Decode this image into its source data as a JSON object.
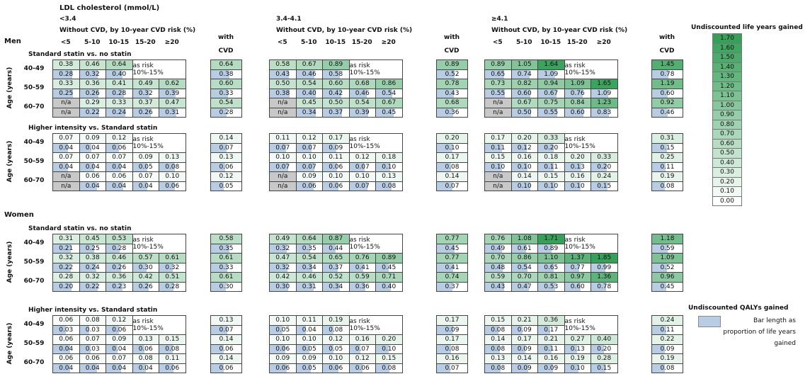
{
  "header": {
    "title": "LDL cholesterol (mmol/L)",
    "groups": [
      {
        "label": "<3.4",
        "subtitle": "Without CVD, by 10-year CVD risk (%)"
      },
      {
        "label": "3.4-4.1",
        "subtitle": "Without CVD, by 10-year CVD risk (%)"
      },
      {
        "label": "≥4.1",
        "subtitle": "Without CVD, by 10-year CVD risk (%)"
      }
    ],
    "risk_columns": [
      "<5",
      "5-10",
      "10-15",
      "15-20",
      "≥20"
    ],
    "cvd_column": "with CVD"
  },
  "age_axis_label": "Age (years)",
  "merged_label": "as risk 10%-15%",
  "sexes": [
    {
      "label": "Men",
      "comparisons": [
        {
          "label": "Standard statin vs. no statin",
          "ages": [
            {
              "label": "40-49",
              "life_years": [
                [
                  "0.38",
                  "0.46",
                  "0.64",
                  "0.64"
                ],
                [
                  "0.58",
                  "0.67",
                  "0.89",
                  "0.89"
                ],
                [
                  "0.89",
                  "1.05",
                  "1.64",
                  "1.45"
                ]
              ],
              "qalys": [
                [
                  "0.28",
                  "0.32",
                  "0.40",
                  "0.38"
                ],
                [
                  "0.43",
                  "0.46",
                  "0.58",
                  "0.52"
                ],
                [
                  "0.65",
                  "0.74",
                  "1.09",
                  "0.78"
                ]
              ]
            },
            {
              "label": "50-59",
              "life_years": [
                [
                  "0.33",
                  "0.36",
                  "0.41",
                  "0.49",
                  "0.62",
                  "0.60"
                ],
                [
                  "0.50",
                  "0.54",
                  "0.60",
                  "0.68",
                  "0.86",
                  "0.78"
                ],
                [
                  "0.73",
                  "0.82",
                  "0.94",
                  "1.09",
                  "1.65",
                  "1.19"
                ]
              ],
              "qalys": [
                [
                  "0.25",
                  "0.26",
                  "0.28",
                  "0.32",
                  "0.39",
                  "0.33"
                ],
                [
                  "0.38",
                  "0.40",
                  "0.42",
                  "0.46",
                  "0.54",
                  "0.43"
                ],
                [
                  "0.55",
                  "0.60",
                  "0.67",
                  "0.76",
                  "1.09",
                  "0.60"
                ]
              ]
            },
            {
              "label": "60-70",
              "life_years": [
                [
                  "n/a",
                  "0.29",
                  "0.33",
                  "0.37",
                  "0.47",
                  "0.54"
                ],
                [
                  "n/a",
                  "0.45",
                  "0.50",
                  "0.54",
                  "0.67",
                  "0.68"
                ],
                [
                  "n/a",
                  "0.67",
                  "0.75",
                  "0.84",
                  "1.23",
                  "0.92"
                ]
              ],
              "qalys": [
                [
                  "n/a",
                  "0.22",
                  "0.24",
                  "0.26",
                  "0.31",
                  "0.28"
                ],
                [
                  "n/a",
                  "0.34",
                  "0.37",
                  "0.39",
                  "0.45",
                  "0.36"
                ],
                [
                  "n/a",
                  "0.50",
                  "0.55",
                  "0.60",
                  "0.83",
                  "0.46"
                ]
              ]
            }
          ]
        },
        {
          "label": "Higher intensity vs. Standard statin",
          "ages": [
            {
              "label": "40-49",
              "life_years": [
                [
                  "0.07",
                  "0.09",
                  "0.12",
                  "0.14"
                ],
                [
                  "0.11",
                  "0.12",
                  "0.17",
                  "0.20"
                ],
                [
                  "0.17",
                  "0.20",
                  "0.33",
                  "0.31"
                ]
              ],
              "qalys": [
                [
                  "0.04",
                  "0.04",
                  "0.06",
                  "0.07"
                ],
                [
                  "0.07",
                  "0.07",
                  "0.09",
                  "0.10"
                ],
                [
                  "0.11",
                  "0.12",
                  "0.20",
                  "0.15"
                ]
              ]
            },
            {
              "label": "50-59",
              "life_years": [
                [
                  "0.07",
                  "0.07",
                  "0.07",
                  "0.09",
                  "0.13",
                  "0.13"
                ],
                [
                  "0.10",
                  "0.10",
                  "0.11",
                  "0.12",
                  "0.18",
                  "0.17"
                ],
                [
                  "0.15",
                  "0.16",
                  "0.18",
                  "0.20",
                  "0.33",
                  "0.25"
                ]
              ],
              "qalys": [
                [
                  "0.04",
                  "0.04",
                  "0.04",
                  "0.05",
                  "0.08",
                  "0.06"
                ],
                [
                  "0.07",
                  "0.07",
                  "0.06",
                  "0.07",
                  "0.10",
                  "0.08"
                ],
                [
                  "0.10",
                  "0.10",
                  "0.11",
                  "0.13",
                  "0.20",
                  "0.11"
                ]
              ]
            },
            {
              "label": "60-70",
              "life_years": [
                [
                  "n/a",
                  "0.06",
                  "0.06",
                  "0.07",
                  "0.10",
                  "0.12"
                ],
                [
                  "n/a",
                  "0.09",
                  "0.10",
                  "0.10",
                  "0.13",
                  "0.14"
                ],
                [
                  "n/a",
                  "0.14",
                  "0.15",
                  "0.16",
                  "0.24",
                  "0.19"
                ]
              ],
              "qalys": [
                [
                  "n/a",
                  "0.04",
                  "0.04",
                  "0.04",
                  "0.06",
                  "0.05"
                ],
                [
                  "n/a",
                  "0.06",
                  "0.06",
                  "0.07",
                  "0.08",
                  "0.07"
                ],
                [
                  "n/a",
                  "0.10",
                  "0.10",
                  "0.10",
                  "0.15",
                  "0.08"
                ]
              ]
            }
          ]
        }
      ]
    },
    {
      "label": "Women",
      "comparisons": [
        {
          "label": "Standard statin vs. no statin",
          "ages": [
            {
              "label": "40-49",
              "life_years": [
                [
                  "0.31",
                  "0.45",
                  "0.53",
                  "0.58"
                ],
                [
                  "0.49",
                  "0.64",
                  "0.87",
                  "0.77"
                ],
                [
                  "0.76",
                  "1.08",
                  "1.71",
                  "1.18"
                ]
              ],
              "qalys": [
                [
                  "0.21",
                  "0.25",
                  "0.28",
                  "0.35"
                ],
                [
                  "0.32",
                  "0.35",
                  "0.44",
                  "0.45"
                ],
                [
                  "0.49",
                  "0.61",
                  "0.89",
                  "0.59"
                ]
              ]
            },
            {
              "label": "50-59",
              "life_years": [
                [
                  "0.32",
                  "0.38",
                  "0.46",
                  "0.57",
                  "0.61",
                  "0.61"
                ],
                [
                  "0.47",
                  "0.54",
                  "0.65",
                  "0.76",
                  "0.89",
                  "0.77"
                ],
                [
                  "0.70",
                  "0.86",
                  "1.10",
                  "1.37",
                  "1.85",
                  "1.09"
                ]
              ],
              "qalys": [
                [
                  "0.22",
                  "0.24",
                  "0.26",
                  "0.30",
                  "0.32",
                  "0.33"
                ],
                [
                  "0.32",
                  "0.34",
                  "0.37",
                  "0.41",
                  "0.45",
                  "0.41"
                ],
                [
                  "0.48",
                  "0.54",
                  "0.65",
                  "0.77",
                  "0.99",
                  "0.52"
                ]
              ]
            },
            {
              "label": "60-70",
              "life_years": [
                [
                  "0.28",
                  "0.32",
                  "0.36",
                  "0.42",
                  "0.51",
                  "0.61"
                ],
                [
                  "0.42",
                  "0.46",
                  "0.52",
                  "0.59",
                  "0.71",
                  "0.74"
                ],
                [
                  "0.59",
                  "0.70",
                  "0.81",
                  "0.97",
                  "1.36",
                  "0.96"
                ]
              ],
              "qalys": [
                [
                  "0.20",
                  "0.22",
                  "0.23",
                  "0.26",
                  "0.28",
                  "0.30"
                ],
                [
                  "0.30",
                  "0.31",
                  "0.34",
                  "0.36",
                  "0.40",
                  "0.37"
                ],
                [
                  "0.43",
                  "0.47",
                  "0.53",
                  "0.60",
                  "0.78",
                  "0.45"
                ]
              ]
            }
          ]
        },
        {
          "label": "Higher intensity vs. Standard statin",
          "ages": [
            {
              "label": "40-49",
              "life_years": [
                [
                  "0.06",
                  "0.08",
                  "0.12",
                  "0.13"
                ],
                [
                  "0.10",
                  "0.11",
                  "0.19",
                  "0.17"
                ],
                [
                  "0.15",
                  "0.21",
                  "0.36",
                  "0.24"
                ]
              ],
              "qalys": [
                [
                  "0.03",
                  "0.03",
                  "0.06",
                  "0.07"
                ],
                [
                  "0.05",
                  "0.04",
                  "0.08",
                  "0.09"
                ],
                [
                  "0.08",
                  "0.09",
                  "0.17",
                  "0.11"
                ]
              ]
            },
            {
              "label": "50-59",
              "life_years": [
                [
                  "0.06",
                  "0.07",
                  "0.09",
                  "0.13",
                  "0.15",
                  "0.14"
                ],
                [
                  "0.10",
                  "0.10",
                  "0.12",
                  "0.16",
                  "0.20",
                  "0.17"
                ],
                [
                  "0.14",
                  "0.17",
                  "0.21",
                  "0.27",
                  "0.40",
                  "0.22"
                ]
              ],
              "qalys": [
                [
                  "0.04",
                  "0.03",
                  "0.04",
                  "0.06",
                  "0.08",
                  "0.06"
                ],
                [
                  "0.06",
                  "0.05",
                  "0.05",
                  "0.07",
                  "0.10",
                  "0.08"
                ],
                [
                  "0.08",
                  "0.09",
                  "0.11",
                  "0.13",
                  "0.20",
                  "0.09"
                ]
              ]
            },
            {
              "label": "60-70",
              "life_years": [
                [
                  "0.06",
                  "0.06",
                  "0.07",
                  "0.08",
                  "0.11",
                  "0.14"
                ],
                [
                  "0.09",
                  "0.09",
                  "0.10",
                  "0.12",
                  "0.15",
                  "0.16"
                ],
                [
                  "0.13",
                  "0.14",
                  "0.16",
                  "0.19",
                  "0.28",
                  "0.19"
                ]
              ],
              "qalys": [
                [
                  "0.04",
                  "0.04",
                  "0.04",
                  "0.04",
                  "0.06",
                  "0.06"
                ],
                [
                  "0.06",
                  "0.05",
                  "0.06",
                  "0.06",
                  "0.08",
                  "0.07"
                ],
                [
                  "0.08",
                  "0.09",
                  "0.09",
                  "0.10",
                  "0.15",
                  "0.08"
                ]
              ]
            }
          ]
        }
      ]
    }
  ],
  "legend": {
    "life_years": {
      "title": "Undiscounted life years gained",
      "scale": [
        "1.70",
        "1.60",
        "1.50",
        "1.40",
        "1.30",
        "1.20",
        "1.10",
        "1.00",
        "0.90",
        "0.80",
        "0.70",
        "0.60",
        "0.50",
        "0.40",
        "0.30",
        "0.20",
        "0.10",
        "0.00"
      ]
    },
    "qalys": {
      "title": "Undiscounted QALYs gained",
      "note": "Bar length as proportion of life years gained"
    }
  }
}
